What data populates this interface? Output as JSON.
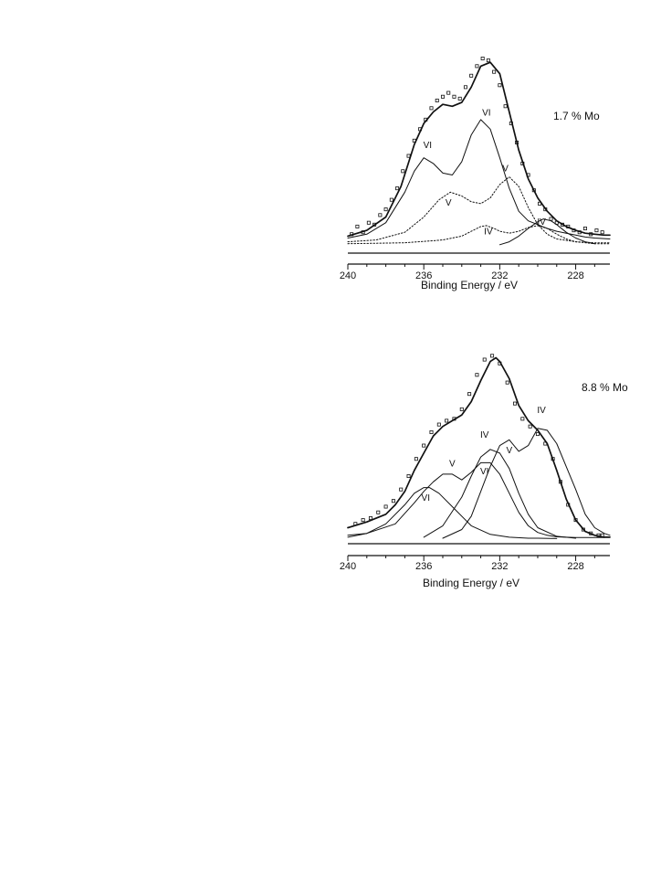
{
  "chart_data": [
    {
      "type": "line",
      "title": "1.7 % Mo",
      "xlabel": "Binding Energy / eV",
      "ylabel": "",
      "xlim": [
        240,
        226.2
      ],
      "ylim": [
        0,
        100
      ],
      "xticks": [
        "240",
        "236",
        "232",
        "228"
      ],
      "grid": false,
      "series": [
        {
          "name": "",
          "style": "solid-thick",
          "kind": "envelope",
          "x": [
            240,
            239,
            238,
            237.2,
            236.5,
            236,
            235.5,
            235,
            234.5,
            234,
            233.5,
            233,
            232.5,
            232,
            231.5,
            231,
            230.5,
            230,
            229.5,
            229,
            228.5,
            228,
            227.5,
            227,
            226.5,
            226.2
          ],
          "y": [
            7,
            10,
            17,
            33,
            55,
            66,
            72,
            76,
            75,
            77,
            85,
            96,
            98,
            92,
            72,
            52,
            37,
            27,
            20,
            15,
            12,
            10,
            8.5,
            8,
            7.5,
            7.5
          ]
        },
        {
          "name": "",
          "style": "solid",
          "kind": "component-sum",
          "x": [
            240,
            239,
            238,
            237,
            236.5,
            236,
            235.5,
            235,
            234.5,
            234,
            233.5,
            233,
            232.5,
            232,
            231.5,
            231,
            230.5,
            230,
            229.5,
            229,
            228.5,
            228,
            227.5,
            227,
            226.2
          ],
          "y": [
            6,
            8,
            14,
            30,
            41,
            48,
            45,
            40,
            39,
            46,
            60,
            68,
            63,
            48,
            32,
            20,
            15,
            13,
            11,
            9.5,
            8.5,
            7.5,
            6.5,
            6,
            5.5
          ]
        },
        {
          "name": "",
          "style": "solid",
          "kind": "component",
          "x": [
            232,
            231.5,
            231,
            230.5,
            230,
            229.7,
            229.3,
            229,
            228.5,
            228,
            227.5,
            227
          ],
          "y": [
            2.5,
            4,
            7,
            11,
            14.5,
            16,
            15,
            13,
            9,
            6,
            4,
            3
          ]
        },
        {
          "name": "",
          "style": "dotted",
          "kind": "component",
          "x": [
            240,
            238.5,
            237,
            236,
            235.2,
            234.6,
            234,
            233.5,
            233,
            232.5,
            232,
            231.5,
            231,
            230.5,
            230,
            229.5,
            229,
            228,
            227,
            226.2
          ],
          "y": [
            4,
            5,
            9,
            17,
            26,
            30,
            28,
            25,
            24,
            27,
            34,
            38,
            33,
            22,
            13,
            8,
            5.5,
            4,
            3.5,
            3.5
          ]
        },
        {
          "name": "",
          "style": "dotted",
          "kind": "component",
          "x": [
            240,
            237,
            235,
            234,
            233.5,
            233,
            232.7,
            232.3,
            232,
            231.5,
            231,
            230.5,
            230,
            229.5,
            229,
            228.5,
            228,
            227,
            226.2
          ],
          "y": [
            3,
            3.5,
            5,
            7,
            9.5,
            12,
            12.5,
            11,
            9.5,
            8.5,
            9.5,
            11.5,
            12.5,
            11,
            8,
            5.5,
            4,
            3,
            3
          ]
        },
        {
          "name": "",
          "style": "markers",
          "kind": "data",
          "x": [
            239.8,
            239.5,
            239.2,
            238.9,
            238.6,
            238.3,
            238,
            237.7,
            237.4,
            237.1,
            236.8,
            236.5,
            236.2,
            235.9,
            235.6,
            235.3,
            235,
            234.7,
            234.4,
            234.1,
            233.8,
            233.5,
            233.2,
            232.9,
            232.6,
            232.3,
            232,
            231.7,
            231.4,
            231.1,
            230.8,
            230.5,
            230.2,
            229.9,
            229.6,
            229.3,
            229,
            228.7,
            228.4,
            228.1,
            227.8,
            227.5,
            227.2,
            226.9,
            226.6
          ],
          "y": [
            8,
            12,
            9,
            14,
            13,
            18,
            21,
            26,
            32,
            41,
            49,
            57,
            63,
            68,
            74,
            78,
            80,
            82,
            80,
            79,
            85,
            91,
            96,
            100,
            99,
            93,
            86,
            75,
            66,
            56,
            45,
            39,
            31,
            24,
            21,
            16,
            14,
            13,
            12,
            10,
            9,
            11,
            8,
            10,
            9
          ]
        }
      ],
      "annotations": [
        {
          "text": "VI",
          "x": 235.8,
          "y": 53
        },
        {
          "text": "VI",
          "x": 232.7,
          "y": 70
        },
        {
          "text": "V",
          "x": 234.7,
          "y": 23
        },
        {
          "text": "V",
          "x": 231.7,
          "y": 41
        },
        {
          "text": "IV",
          "x": 232.6,
          "y": 8
        },
        {
          "text": "IV",
          "x": 229.8,
          "y": 13
        }
      ]
    },
    {
      "type": "line",
      "title": "8.8 % Mo",
      "xlabel": "Binding Energy / eV",
      "ylabel": "",
      "xlim": [
        240,
        226.2
      ],
      "ylim": [
        0,
        100
      ],
      "xticks": [
        "240",
        "236",
        "232",
        "228"
      ],
      "grid": false,
      "series": [
        {
          "name": "",
          "style": "solid-thick",
          "kind": "envelope",
          "x": [
            240,
            239,
            238,
            237.5,
            237,
            236.5,
            236,
            235.5,
            235,
            234.5,
            234,
            233.5,
            233,
            232.5,
            232.2,
            232,
            231.5,
            231,
            230.5,
            230,
            229.5,
            229,
            228.5,
            228,
            227.5,
            227,
            226.5,
            226.2
          ],
          "y": [
            6,
            9,
            13,
            18,
            25,
            36,
            45,
            54,
            59,
            62,
            65,
            72,
            83,
            93,
            95,
            93,
            84,
            70,
            62,
            57,
            50,
            36,
            21,
            10,
            4,
            2,
            1,
            1
          ]
        },
        {
          "name": "",
          "style": "solid",
          "kind": "component",
          "x": [
            240,
            239,
            238,
            237,
            236.5,
            236,
            235.7,
            235.2,
            234.5,
            233.5,
            232.5,
            231.5,
            230.5,
            230,
            229
          ],
          "y": [
            1,
            3,
            8,
            18,
            24,
            27,
            27,
            24,
            17,
            7,
            2.5,
            1,
            0.5,
            0.5,
            0.3
          ]
        },
        {
          "name": "",
          "style": "solid",
          "kind": "component",
          "x": [
            240,
            239,
            237.5,
            236.5,
            236,
            235.5,
            235,
            234.5,
            234,
            233.5,
            233,
            232.5,
            232,
            231.5,
            231,
            230.5,
            230,
            229.5,
            229,
            228.5,
            228,
            227,
            226.5
          ],
          "y": [
            2,
            3,
            8,
            19,
            25,
            30,
            34,
            34,
            31,
            35,
            40,
            40,
            34,
            24,
            14,
            7,
            3.5,
            2,
            1.2,
            1,
            0.8,
            0.8,
            0.8
          ]
        },
        {
          "name": "",
          "style": "solid",
          "kind": "component",
          "x": [
            236,
            235,
            234,
            233.5,
            233,
            232.5,
            232,
            231.5,
            231,
            230.5,
            230,
            229,
            228
          ],
          "y": [
            1,
            7,
            22,
            33,
            43,
            47,
            45,
            37,
            24,
            13,
            6,
            1.5,
            0.5
          ]
        },
        {
          "name": "",
          "style": "solid",
          "kind": "component",
          "x": [
            235,
            234,
            233.5,
            233,
            232.5,
            232,
            231.5,
            231,
            230.5,
            230,
            229.5,
            229,
            228,
            227.5,
            227,
            226.5,
            226.2
          ],
          "y": [
            0.5,
            5,
            12,
            25,
            38,
            49,
            52,
            46,
            49,
            58,
            57,
            50,
            26,
            13,
            6,
            3,
            2
          ]
        },
        {
          "name": "",
          "style": "markers",
          "kind": "data",
          "x": [
            239.6,
            239.2,
            238.8,
            238.4,
            238,
            237.6,
            237.2,
            236.8,
            236.4,
            236,
            235.6,
            235.2,
            234.8,
            234.4,
            234,
            233.6,
            233.2,
            232.8,
            232.4,
            232,
            231.6,
            231.2,
            230.8,
            230.4,
            230,
            229.6,
            229.2,
            228.8,
            228.4,
            228,
            227.6,
            227.2,
            226.8,
            226.6
          ],
          "y": [
            8,
            10,
            11,
            14,
            17,
            20,
            26,
            33,
            42,
            49,
            56,
            60,
            62,
            63,
            68,
            76,
            86,
            94,
            96,
            92,
            82,
            71,
            63,
            59,
            55,
            50,
            42,
            30,
            18,
            10,
            5,
            3,
            2,
            2
          ]
        }
      ],
      "annotations": [
        {
          "text": "VI",
          "x": 235.9,
          "y": 20
        },
        {
          "text": "V",
          "x": 234.5,
          "y": 38
        },
        {
          "text": "IV",
          "x": 232.8,
          "y": 53
        },
        {
          "text": "VI",
          "x": 232.8,
          "y": 34
        },
        {
          "text": "V",
          "x": 231.5,
          "y": 45
        },
        {
          "text": "IV",
          "x": 229.8,
          "y": 66
        }
      ]
    }
  ]
}
